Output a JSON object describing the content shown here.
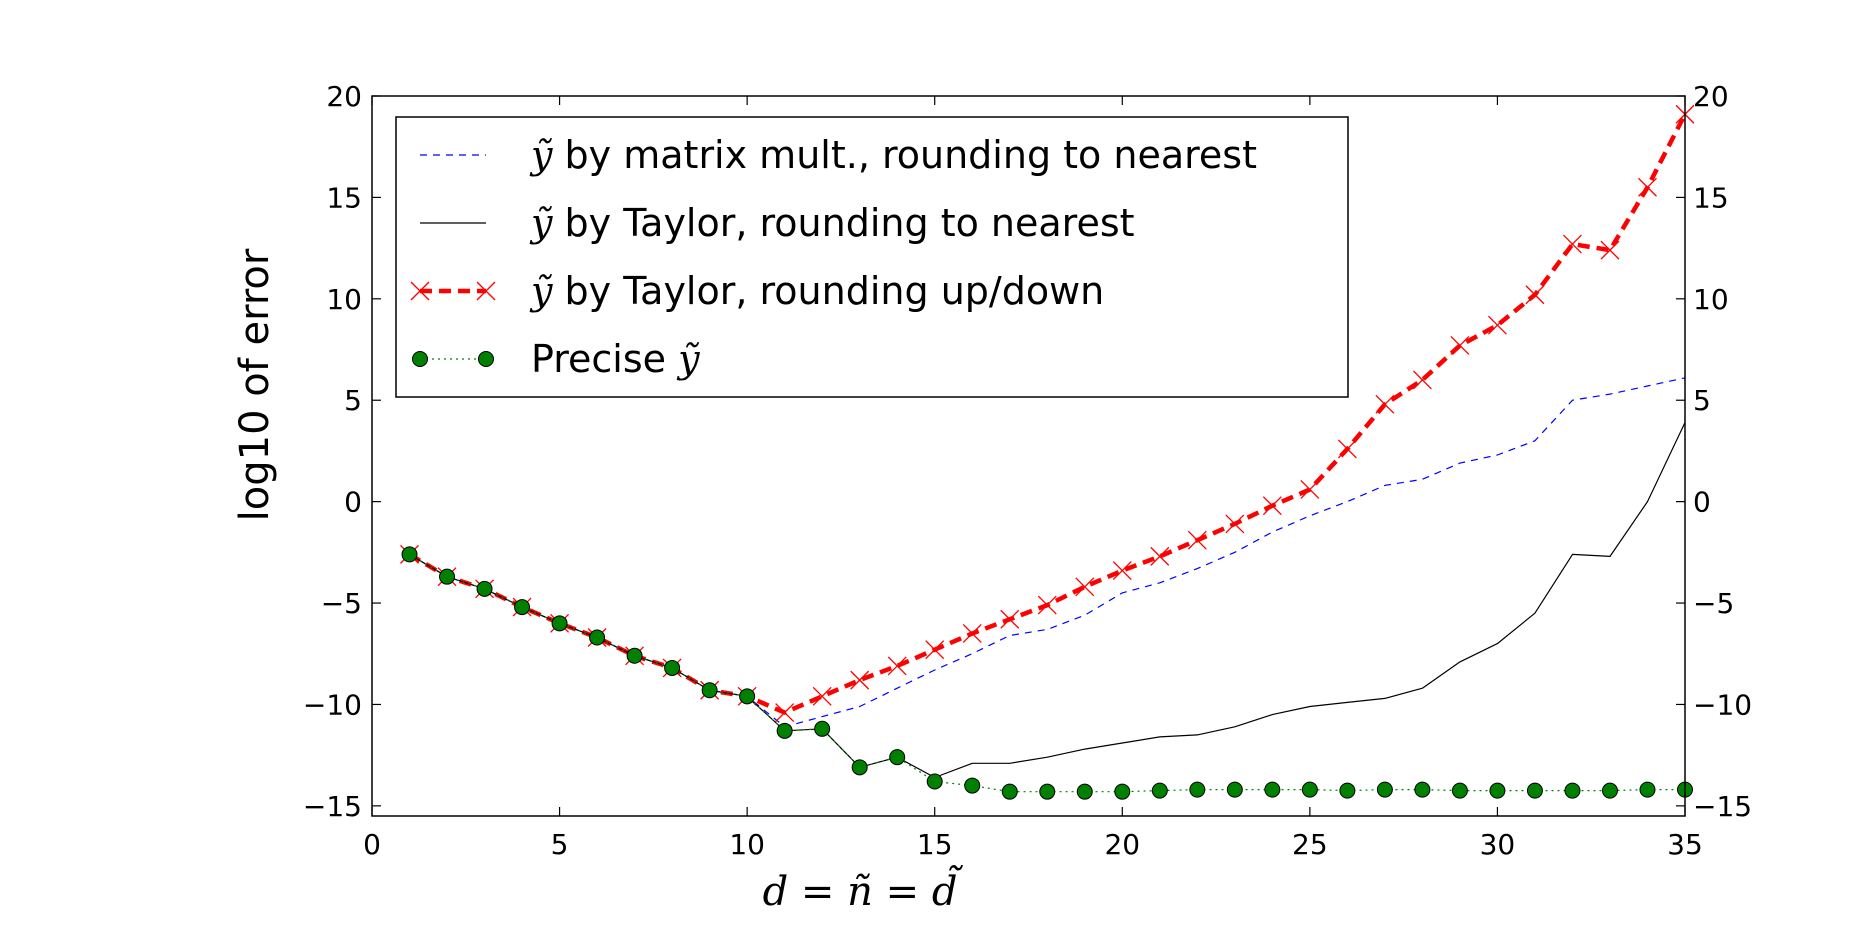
{
  "chart_data": {
    "type": "line",
    "xlabel": "d = ñ = d̃",
    "ylabel": "log10 of error",
    "xlim": [
      0,
      35
    ],
    "ylim": [
      -15.5,
      20
    ],
    "xticks": [
      0,
      5,
      10,
      15,
      20,
      25,
      30,
      35
    ],
    "yticks": [
      -15,
      -10,
      -5,
      0,
      5,
      10,
      15,
      20
    ],
    "ytick_labels": [
      "−15",
      "−10",
      "−5",
      "0",
      "5",
      "10",
      "15",
      "20"
    ],
    "right_axis": true,
    "legend_position": "upper-left",
    "grid": false,
    "x": [
      1,
      2,
      3,
      4,
      5,
      6,
      7,
      8,
      9,
      10,
      11,
      12,
      13,
      14,
      15,
      16,
      17,
      18,
      19,
      20,
      21,
      22,
      23,
      24,
      25,
      26,
      27,
      28,
      29,
      30,
      31,
      32,
      33,
      34,
      35
    ],
    "series": [
      {
        "name": "ỹ by matrix mult., rounding to nearest",
        "legend_prefix": "ỹ",
        "legend_suffix": " by matrix mult., rounding to nearest",
        "color": "#0000ff",
        "style": "dashed",
        "marker": "none",
        "values": [
          -2.6,
          -3.7,
          -4.3,
          -5.2,
          -6.0,
          -6.7,
          -7.6,
          -8.2,
          -9.3,
          -9.6,
          -11.1,
          -10.6,
          -10.1,
          -9.2,
          -8.3,
          -7.5,
          -6.6,
          -6.3,
          -5.6,
          -4.5,
          -4.0,
          -3.3,
          -2.5,
          -1.5,
          -0.7,
          0.0,
          0.8,
          1.1,
          1.9,
          2.3,
          3.0,
          5.0,
          5.3,
          5.7,
          6.1
        ]
      },
      {
        "name": "ỹ by Taylor, rounding to nearest",
        "legend_prefix": "ỹ",
        "legend_suffix": " by Taylor, rounding to nearest",
        "color": "#000000",
        "style": "solid",
        "marker": "none",
        "values": [
          -2.6,
          -3.7,
          -4.3,
          -5.2,
          -6.0,
          -6.7,
          -7.6,
          -8.2,
          -9.3,
          -9.6,
          -11.3,
          -11.2,
          -13.1,
          -12.6,
          -13.6,
          -12.9,
          -12.9,
          -12.6,
          -12.2,
          -11.9,
          -11.6,
          -11.5,
          -11.1,
          -10.5,
          -10.1,
          -9.9,
          -9.7,
          -9.2,
          -7.9,
          -7.0,
          -5.5,
          -2.6,
          -2.7,
          0.0,
          3.9
        ]
      },
      {
        "name": "ỹ by Taylor, rounding up/down",
        "legend_prefix": "ỹ",
        "legend_suffix": " by Taylor, rounding up/down",
        "color": "#ff0000",
        "style": "dashed-thick",
        "marker": "x",
        "values": [
          -2.6,
          -3.7,
          -4.3,
          -5.2,
          -6.0,
          -6.7,
          -7.6,
          -8.2,
          -9.3,
          -9.6,
          -10.4,
          -9.6,
          -8.8,
          -8.1,
          -7.3,
          -6.5,
          -5.8,
          -5.1,
          -4.2,
          -3.4,
          -2.7,
          -1.9,
          -1.1,
          -0.2,
          0.6,
          2.6,
          4.8,
          6.0,
          7.7,
          8.7,
          10.2,
          12.7,
          12.4,
          15.5,
          19.1
        ]
      },
      {
        "name": "Precise ỹ",
        "legend_prefix": "Precise ",
        "legend_suffix": "ỹ",
        "color": "#008000",
        "style": "dotted",
        "marker": "o",
        "values": [
          -2.6,
          -3.7,
          -4.3,
          -5.2,
          -6.0,
          -6.7,
          -7.6,
          -8.2,
          -9.3,
          -9.6,
          -11.3,
          -11.2,
          -13.1,
          -12.6,
          -13.8,
          -14.0,
          -14.3,
          -14.3,
          -14.3,
          -14.3,
          -14.25,
          -14.2,
          -14.2,
          -14.2,
          -14.2,
          -14.25,
          -14.2,
          -14.2,
          -14.25,
          -14.25,
          -14.25,
          -14.25,
          -14.25,
          -14.2,
          -14.2
        ]
      }
    ]
  }
}
